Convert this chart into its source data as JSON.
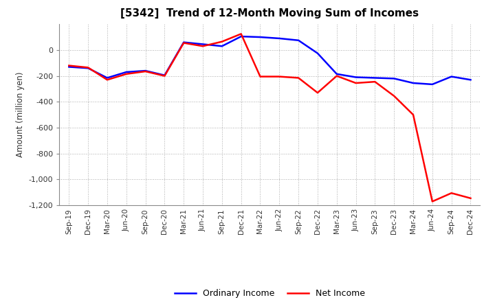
{
  "title": "[5342]  Trend of 12-Month Moving Sum of Incomes",
  "ylabel": "Amount (million yen)",
  "ylim": [
    -1200,
    200
  ],
  "yticks": [
    0,
    -200,
    -400,
    -600,
    -800,
    -1000,
    -1200
  ],
  "ordinary_income_color": "#0000ff",
  "net_income_color": "#ff0000",
  "line_width": 1.8,
  "labels": [
    "Sep-19",
    "Dec-19",
    "Mar-20",
    "Jun-20",
    "Sep-20",
    "Dec-20",
    "Mar-21",
    "Jun-21",
    "Sep-21",
    "Dec-21",
    "Mar-22",
    "Jun-22",
    "Sep-22",
    "Dec-22",
    "Mar-23",
    "Jun-23",
    "Sep-23",
    "Dec-23",
    "Mar-24",
    "Jun-24",
    "Sep-24",
    "Dec-24"
  ],
  "ordinary_income": [
    -130,
    -140,
    -215,
    -170,
    -160,
    -195,
    60,
    45,
    30,
    105,
    100,
    90,
    75,
    -25,
    -185,
    -210,
    -215,
    -220,
    -255,
    -265,
    -205,
    -230
  ],
  "net_income": [
    -120,
    -135,
    -230,
    -185,
    -165,
    -200,
    55,
    30,
    65,
    125,
    -205,
    -205,
    -215,
    -330,
    -200,
    -255,
    -245,
    -355,
    -500,
    -1170,
    -1105,
    -1145
  ]
}
